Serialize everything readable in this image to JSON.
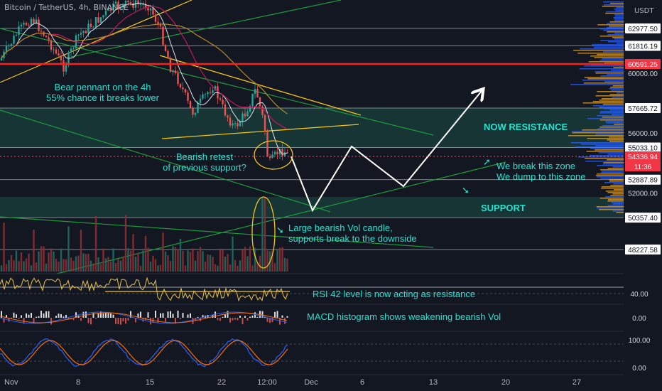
{
  "header": {
    "symbol_line": "Bitcoin / TetherUS, 4h, BINANCE"
  },
  "currency_unit": "USDT",
  "annotations": {
    "bear_pennant": "Bear pennant on the 4h",
    "bear_chance": "55% chance it breaks lower",
    "now_resistance": "NOW RESISTANCE",
    "bearish_retest_1": "Bearish retest",
    "bearish_retest_2": "of previous support?",
    "break_zone": "We break this zone",
    "dump_zone": "We dump to this zone",
    "support": "SUPPORT",
    "vol_candle_1": "Large bearish Vol candle,",
    "vol_candle_2": "supports break to the downside",
    "rsi_note": "RSI 42 level is now acting as resistance",
    "macd_note": "MACD histogram shows weakening bearish Vol"
  },
  "colors": {
    "background": "#131722",
    "annotation": "#26e2d0",
    "up_candle": "#26a69a",
    "down_candle": "#ef5350",
    "current_price_label": "#f23645",
    "red_level": "#ff1e1e",
    "zone_fill": "#1d4a44",
    "trendline_green": "#1c9c3c",
    "trendline_yellow": "#f5c518",
    "rsi_line": "#e8c24a",
    "stoch_k": "#2962ff",
    "stoch_d": "#ff6d00"
  },
  "chart_data": {
    "type": "candlestick",
    "symbol": "Bitcoin / TetherUS",
    "interval": "4h",
    "exchange": "BINANCE",
    "y_axis_labels": [
      {
        "value": "62977.50",
        "kind": "level"
      },
      {
        "value": "61816.19",
        "kind": "level"
      },
      {
        "value": "60591.25",
        "kind": "key_level"
      },
      {
        "value": "60000.00",
        "kind": "tick"
      },
      {
        "value": "57665.72",
        "kind": "level"
      },
      {
        "value": "56000.00",
        "kind": "tick"
      },
      {
        "value": "55033.10",
        "kind": "level"
      },
      {
        "value": "54336.94",
        "kind": "current"
      },
      {
        "value": "52887.89",
        "kind": "level"
      },
      {
        "value": "52000.00",
        "kind": "tick"
      },
      {
        "value": "50357.40",
        "kind": "level"
      },
      {
        "value": "48227.58",
        "kind": "level"
      }
    ],
    "countdown": "11:36",
    "x_axis_labels": [
      "Nov",
      "8",
      "15",
      "22",
      "12:00",
      "Dec",
      "6",
      "13",
      "20",
      "27"
    ],
    "zones": [
      {
        "name": "resistance",
        "low": 55033.1,
        "high": 57665.72
      },
      {
        "name": "support",
        "low": 50357.4,
        "high": 51700
      }
    ],
    "key_level": 60591.25,
    "current_price": 54336.94,
    "projected_path": [
      {
        "date": "Nov 30",
        "price": 51200
      },
      {
        "date": "Dec 5",
        "price": 55030
      },
      {
        "date": "Dec 9",
        "price": 53300
      },
      {
        "date": "Dec 17",
        "price": 59300
      }
    ],
    "pennant_upper": [
      [
        60000,
        56950
      ],
      [
        "Nov 20",
        "Dec 5"
      ]
    ],
    "indicators": {
      "rsi": {
        "labels": [
          "40.00"
        ],
        "resistance_level": 42
      },
      "macd": {
        "labels": [
          "0.00"
        ]
      },
      "stoch_rsi": {
        "labels": [
          "100.00",
          "0.00"
        ]
      }
    }
  }
}
